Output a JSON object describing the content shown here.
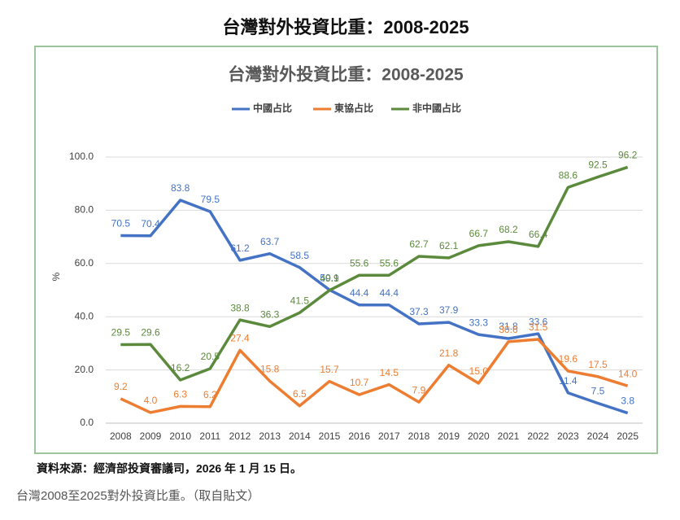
{
  "title": "台灣對外投資比重：2008-2025",
  "chart_data": {
    "type": "line",
    "title": "台灣對外投資比重：2008-2025",
    "y_label": "%",
    "categories": [
      "2008",
      "2009",
      "2010",
      "2011",
      "2012",
      "2013",
      "2014",
      "2015",
      "2016",
      "2017",
      "2018",
      "2019",
      "2020",
      "2021",
      "2022",
      "2023",
      "2024",
      "2025"
    ],
    "series": [
      {
        "name": "中國占比",
        "color": "#4472c4",
        "values": [
          70.5,
          70.4,
          83.8,
          79.5,
          61.2,
          63.7,
          58.5,
          50.1,
          44.4,
          44.4,
          37.3,
          37.9,
          33.3,
          31.8,
          33.6,
          11.4,
          7.5,
          3.8
        ],
        "value_labels": [
          "70.5",
          "70.4",
          "83.8",
          "79.5",
          "61.2",
          "63.7",
          "58.5",
          "50.1",
          "44.4",
          "44.4",
          "37.3",
          "37.9",
          "33.3",
          "31.8",
          "33.6",
          "11.4",
          "7.5",
          "3.8"
        ]
      },
      {
        "name": "東協占比",
        "color": "#ed7d31",
        "values": [
          9.2,
          4.0,
          6.3,
          6.2,
          27.4,
          15.8,
          6.5,
          15.7,
          10.7,
          14.5,
          7.9,
          21.8,
          15.0,
          30.6,
          31.5,
          19.6,
          17.5,
          14.0
        ],
        "value_labels": [
          "9.2",
          "4.0",
          "6.3",
          "6.2",
          "27.4",
          "15.8",
          "6.5",
          "15.7",
          "10.7",
          "14.5",
          "7.9",
          "21.8",
          "15.0",
          "30.6",
          "31.5",
          "19.6",
          "17.5",
          "14.0"
        ]
      },
      {
        "name": "非中國占比",
        "color": "#5b8a3c",
        "values": [
          29.5,
          29.6,
          16.2,
          20.5,
          38.8,
          36.3,
          41.5,
          49.9,
          55.6,
          55.6,
          62.7,
          62.1,
          66.7,
          68.2,
          66.4,
          88.6,
          92.5,
          96.2
        ],
        "value_labels": [
          "29.5",
          "29.6",
          "16.2",
          "20.5",
          "38.8",
          "36.3",
          "41.5",
          "49.9",
          "55.6",
          "55.6",
          "62.7",
          "62.1",
          "66.7",
          "68.2",
          "66.4",
          "88.6",
          "92.5",
          "96.2"
        ]
      }
    ],
    "ylim": [
      0,
      100
    ],
    "yticks": [
      {
        "value": 0,
        "label": "0.0"
      },
      {
        "value": 20,
        "label": "20.0"
      },
      {
        "value": 40,
        "label": "40.0"
      },
      {
        "value": 60,
        "label": "60.0"
      },
      {
        "value": 80,
        "label": "80.0"
      },
      {
        "value": 100,
        "label": "100.0"
      }
    ],
    "grid": true,
    "legend": "top"
  },
  "source": "資料來源：經濟部投資審議司，2026 年 1 月 15 日。",
  "caption": "台灣2008至2025對外投資比重。（取自貼文）"
}
